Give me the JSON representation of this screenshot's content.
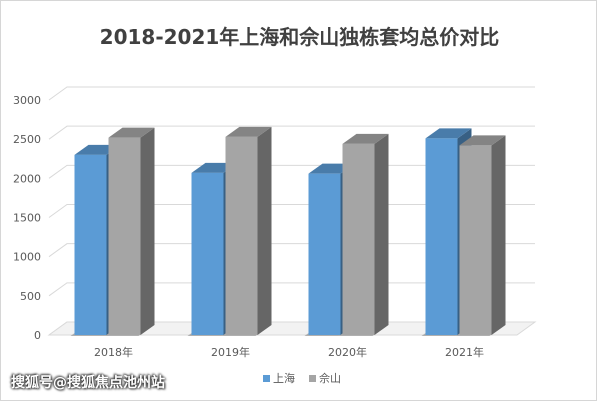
{
  "chart_data": {
    "type": "bar",
    "title": "2018-2021年上海和佘山独栋套均总价对比",
    "categories": [
      "2018年",
      "2019年",
      "2020年",
      "2021年"
    ],
    "series": [
      {
        "name": "上海",
        "values": [
          2300,
          2070,
          2060,
          2510
        ]
      },
      {
        "name": "佘山",
        "values": [
          2520,
          2530,
          2440,
          2420
        ]
      }
    ],
    "ylim": [
      0,
      3000
    ],
    "yticks": [
      0,
      500,
      1000,
      1500,
      2000,
      2500,
      3000
    ],
    "grid": true,
    "legend": "bottom",
    "three_d": true,
    "colors": {
      "上海": "#5b9bd5",
      "佘山": "#a5a5a5"
    }
  },
  "watermark": "搜狐号@搜狐焦点池州站"
}
